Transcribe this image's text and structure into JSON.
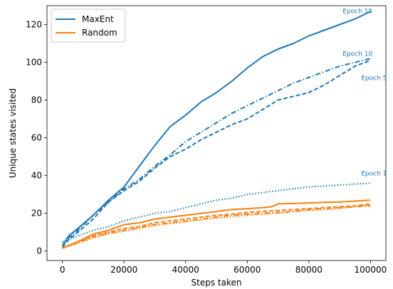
{
  "chart_data": {
    "type": "line",
    "xlabel": "Steps taken",
    "ylabel": "Unique states visited",
    "xlim": [
      -5000,
      105000
    ],
    "ylim": [
      -5,
      130
    ],
    "xticks": [
      0,
      20000,
      40000,
      60000,
      80000,
      100000
    ],
    "yticks": [
      0,
      20,
      40,
      60,
      80,
      100,
      120
    ],
    "grid": false,
    "legend": {
      "placement": "top-left",
      "entries": [
        {
          "label": "MaxEnt",
          "color": "#1f77b4"
        },
        {
          "label": "Random",
          "color": "#ff7f0e"
        }
      ]
    },
    "annotations": [
      {
        "text": "Epoch 15",
        "x": 91000,
        "y": 126,
        "color": "#1f77b4"
      },
      {
        "text": "Epoch 10",
        "x": 91000,
        "y": 103.5,
        "color": "#1f77b4"
      },
      {
        "text": "Epoch 5",
        "x": 97000,
        "y": 90.5,
        "color": "#1f77b4"
      },
      {
        "text": "Epoch 1",
        "x": 97000,
        "y": 40,
        "color": "#1f77b4"
      }
    ],
    "series": [
      {
        "name": "MaxEnt",
        "color": "#1f77b4",
        "dash": "solid",
        "x": [
          0,
          2000,
          5000,
          10000,
          15000,
          20000,
          25000,
          30000,
          35000,
          40000,
          45000,
          50000,
          55000,
          60000,
          65000,
          70000,
          75000,
          80000,
          85000,
          90000,
          95000,
          100000
        ],
        "y": [
          3,
          8,
          12,
          19,
          27,
          34,
          45,
          56,
          66,
          72,
          79,
          84,
          90,
          97,
          103,
          107,
          110,
          114,
          117,
          120,
          123,
          127
        ]
      },
      {
        "series_role": "MaxEnt epoch 10",
        "color": "#1f77b4",
        "dash": "dashdot",
        "x": [
          0,
          2000,
          5000,
          10000,
          15000,
          20000,
          25000,
          30000,
          35000,
          40000,
          45000,
          50000,
          55000,
          60000,
          65000,
          70000,
          75000,
          80000,
          85000,
          90000,
          95000,
          100000
        ],
        "y": [
          2,
          7,
          11,
          19,
          26,
          33,
          38,
          45,
          51,
          58,
          63,
          68,
          73,
          77,
          81,
          85,
          89,
          92,
          95,
          98,
          100,
          102
        ]
      },
      {
        "series_role": "MaxEnt epoch 5",
        "color": "#1f77b4",
        "dash": "dashed",
        "x": [
          0,
          2000,
          5000,
          10000,
          15000,
          20000,
          25000,
          30000,
          35000,
          40000,
          45000,
          50000,
          55000,
          60000,
          65000,
          70000,
          75000,
          80000,
          85000,
          90000,
          95000,
          100000
        ],
        "y": [
          2,
          6,
          10,
          17,
          26,
          32,
          37,
          44,
          50,
          54,
          59,
          63,
          67,
          70,
          75,
          80,
          82,
          84,
          88,
          93,
          98,
          101
        ]
      },
      {
        "series_role": "MaxEnt epoch 1",
        "color": "#1f77b4",
        "dash": "dotted",
        "x": [
          0,
          2000,
          5000,
          10000,
          15000,
          20000,
          25000,
          30000,
          35000,
          40000,
          45000,
          50000,
          55000,
          60000,
          65000,
          70000,
          75000,
          80000,
          85000,
          90000,
          95000,
          100000
        ],
        "y": [
          5,
          6,
          8,
          11,
          13,
          16,
          18,
          20,
          21,
          23,
          25,
          27,
          28,
          30,
          31,
          32,
          33,
          34,
          34.5,
          35,
          35.5,
          36
        ]
      },
      {
        "name": "Random",
        "color": "#ff7f0e",
        "dash": "solid",
        "x": [
          0,
          2000,
          5000,
          10000,
          15000,
          20000,
          25000,
          30000,
          35000,
          40000,
          45000,
          50000,
          55000,
          60000,
          65000,
          68000,
          70000,
          75000,
          80000,
          85000,
          90000,
          95000,
          100000
        ],
        "y": [
          1.5,
          3,
          5,
          9,
          11,
          14,
          15,
          17,
          18,
          19,
          20,
          21,
          22,
          22.5,
          23,
          23.5,
          25,
          25.2,
          25.5,
          25.8,
          26,
          26.5,
          27
        ]
      },
      {
        "series_role": "Random run 2",
        "color": "#ff7f0e",
        "dash": "dashed",
        "x": [
          0,
          2000,
          5000,
          10000,
          15000,
          20000,
          25000,
          30000,
          35000,
          40000,
          45000,
          50000,
          55000,
          60000,
          65000,
          70000,
          75000,
          80000,
          85000,
          90000,
          95000,
          100000
        ],
        "y": [
          1.5,
          3,
          5,
          8,
          10,
          12,
          13,
          15,
          16,
          17,
          18,
          19,
          19.5,
          20.5,
          21,
          21.5,
          22,
          22.5,
          23,
          23.5,
          24,
          25
        ]
      },
      {
        "series_role": "Random run 3",
        "color": "#ff7f0e",
        "dash": "dashdot",
        "x": [
          0,
          2000,
          5000,
          10000,
          15000,
          20000,
          25000,
          30000,
          35000,
          40000,
          45000,
          50000,
          55000,
          60000,
          65000,
          70000,
          75000,
          80000,
          85000,
          90000,
          95000,
          100000
        ],
        "y": [
          1.5,
          3,
          4.5,
          7.5,
          9.5,
          11,
          12.5,
          14,
          15,
          16,
          17,
          18,
          19,
          19.5,
          20,
          20.5,
          21,
          22,
          22.5,
          23,
          23.5,
          24
        ]
      },
      {
        "series_role": "Random run 4",
        "color": "#ff7f0e",
        "dash": "dotted",
        "x": [
          0,
          2000,
          5000,
          10000,
          15000,
          20000,
          25000,
          30000,
          35000,
          40000,
          45000,
          50000,
          55000,
          60000,
          65000,
          70000,
          75000,
          80000,
          85000,
          90000,
          95000,
          100000
        ],
        "y": [
          1.5,
          2.5,
          4,
          7,
          9,
          10.5,
          12,
          13.5,
          14.5,
          15.5,
          16.5,
          17.5,
          18,
          19,
          19.5,
          20,
          21,
          21.5,
          22,
          22.5,
          23.5,
          24.5
        ]
      }
    ]
  }
}
